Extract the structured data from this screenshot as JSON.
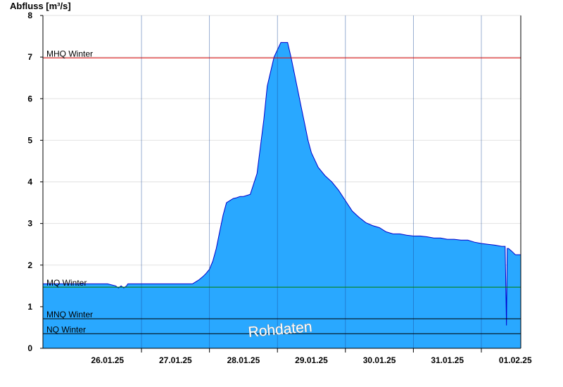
{
  "chart_data": {
    "type": "area",
    "ylabel": "Abfluss [m³/s]",
    "xlabel": "",
    "ylim": [
      0,
      8
    ],
    "xlim": [
      -0.45,
      6.58
    ],
    "yticks": [
      0,
      1,
      2,
      3,
      4,
      5,
      6,
      7,
      8
    ],
    "day_lines": [
      1,
      2,
      3,
      4,
      5,
      6
    ],
    "xticks": [
      {
        "x": 0.5,
        "label": "26.01.25"
      },
      {
        "x": 1.5,
        "label": "27.01.25"
      },
      {
        "x": 2.5,
        "label": "28.01.25"
      },
      {
        "x": 3.5,
        "label": "29.01.25"
      },
      {
        "x": 4.5,
        "label": "30.01.25"
      },
      {
        "x": 5.5,
        "label": "31.01.25"
      },
      {
        "x": 6.5,
        "label": "01.02.25"
      }
    ],
    "series": [
      {
        "fill": "#29a8ff",
        "stroke": "#0000cc",
        "x": [
          -0.45,
          0.5,
          0.62,
          0.66,
          0.7,
          0.74,
          0.78,
          0.8,
          1.0,
          1.5,
          1.75,
          1.8,
          1.85,
          1.9,
          1.95,
          2.0,
          2.05,
          2.1,
          2.15,
          2.2,
          2.25,
          2.3,
          2.35,
          2.4,
          2.45,
          2.5,
          2.6,
          2.7,
          2.8,
          2.85,
          2.95,
          3.05,
          3.15,
          3.2,
          3.25,
          3.3,
          3.35,
          3.4,
          3.45,
          3.5,
          3.6,
          3.7,
          3.8,
          3.9,
          4.0,
          4.1,
          4.2,
          4.3,
          4.4,
          4.5,
          4.6,
          4.7,
          4.8,
          4.9,
          5.0,
          5.1,
          5.2,
          5.3,
          5.4,
          5.5,
          5.6,
          5.7,
          5.8,
          5.9,
          6.0,
          6.1,
          6.2,
          6.3,
          6.35,
          6.37,
          6.38,
          6.4,
          6.45,
          6.5,
          6.58
        ],
        "values": [
          1.55,
          1.55,
          1.5,
          1.45,
          1.5,
          1.45,
          1.5,
          1.55,
          1.55,
          1.55,
          1.55,
          1.6,
          1.65,
          1.72,
          1.8,
          1.9,
          2.1,
          2.4,
          2.8,
          3.2,
          3.5,
          3.55,
          3.6,
          3.62,
          3.65,
          3.65,
          3.7,
          4.2,
          5.5,
          6.3,
          7.0,
          7.35,
          7.35,
          7.0,
          6.6,
          6.2,
          5.8,
          5.4,
          5.0,
          4.7,
          4.35,
          4.15,
          4.0,
          3.8,
          3.55,
          3.3,
          3.15,
          3.02,
          2.95,
          2.9,
          2.8,
          2.75,
          2.75,
          2.72,
          2.7,
          2.7,
          2.68,
          2.65,
          2.65,
          2.62,
          2.62,
          2.6,
          2.6,
          2.55,
          2.52,
          2.5,
          2.48,
          2.45,
          2.45,
          0.55,
          2.4,
          2.4,
          2.33,
          2.25,
          2.25
        ]
      }
    ],
    "reference_lines": [
      {
        "label": "MHQ Winter",
        "value": 6.98,
        "color": "#dd0000"
      },
      {
        "label": "MQ Winter",
        "value": 1.47,
        "color": "#008000"
      },
      {
        "label": "MNQ Winter",
        "value": 0.71,
        "color": "#000000"
      },
      {
        "label": "NQ Winter",
        "value": 0.35,
        "color": "#000000"
      }
    ],
    "annotation": "Rohdaten",
    "grid": true
  }
}
